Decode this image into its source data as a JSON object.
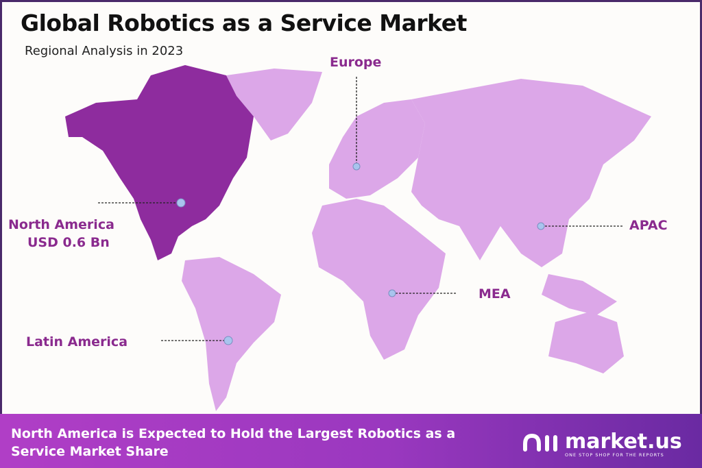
{
  "header": {
    "title": "Global Robotics as a Service Market",
    "subtitle": "Regional Analysis in 2023"
  },
  "regions": [
    {
      "name": "North America",
      "value": "USD 0.6 Bn",
      "highlighted": true
    },
    {
      "name": "Europe"
    },
    {
      "name": "APAC"
    },
    {
      "name": "MEA"
    },
    {
      "name": "Latin America"
    }
  ],
  "colors": {
    "highlight": "#8e2c9e",
    "region": "#dca7e8",
    "label": "#8a2a8e",
    "marker": "#a9c4ee"
  },
  "footer": {
    "text": "North America is Expected to Hold the Largest Robotics as a Service Market Share",
    "brand": "market.us",
    "tagline": "ONE STOP SHOP FOR THE REPORTS"
  }
}
